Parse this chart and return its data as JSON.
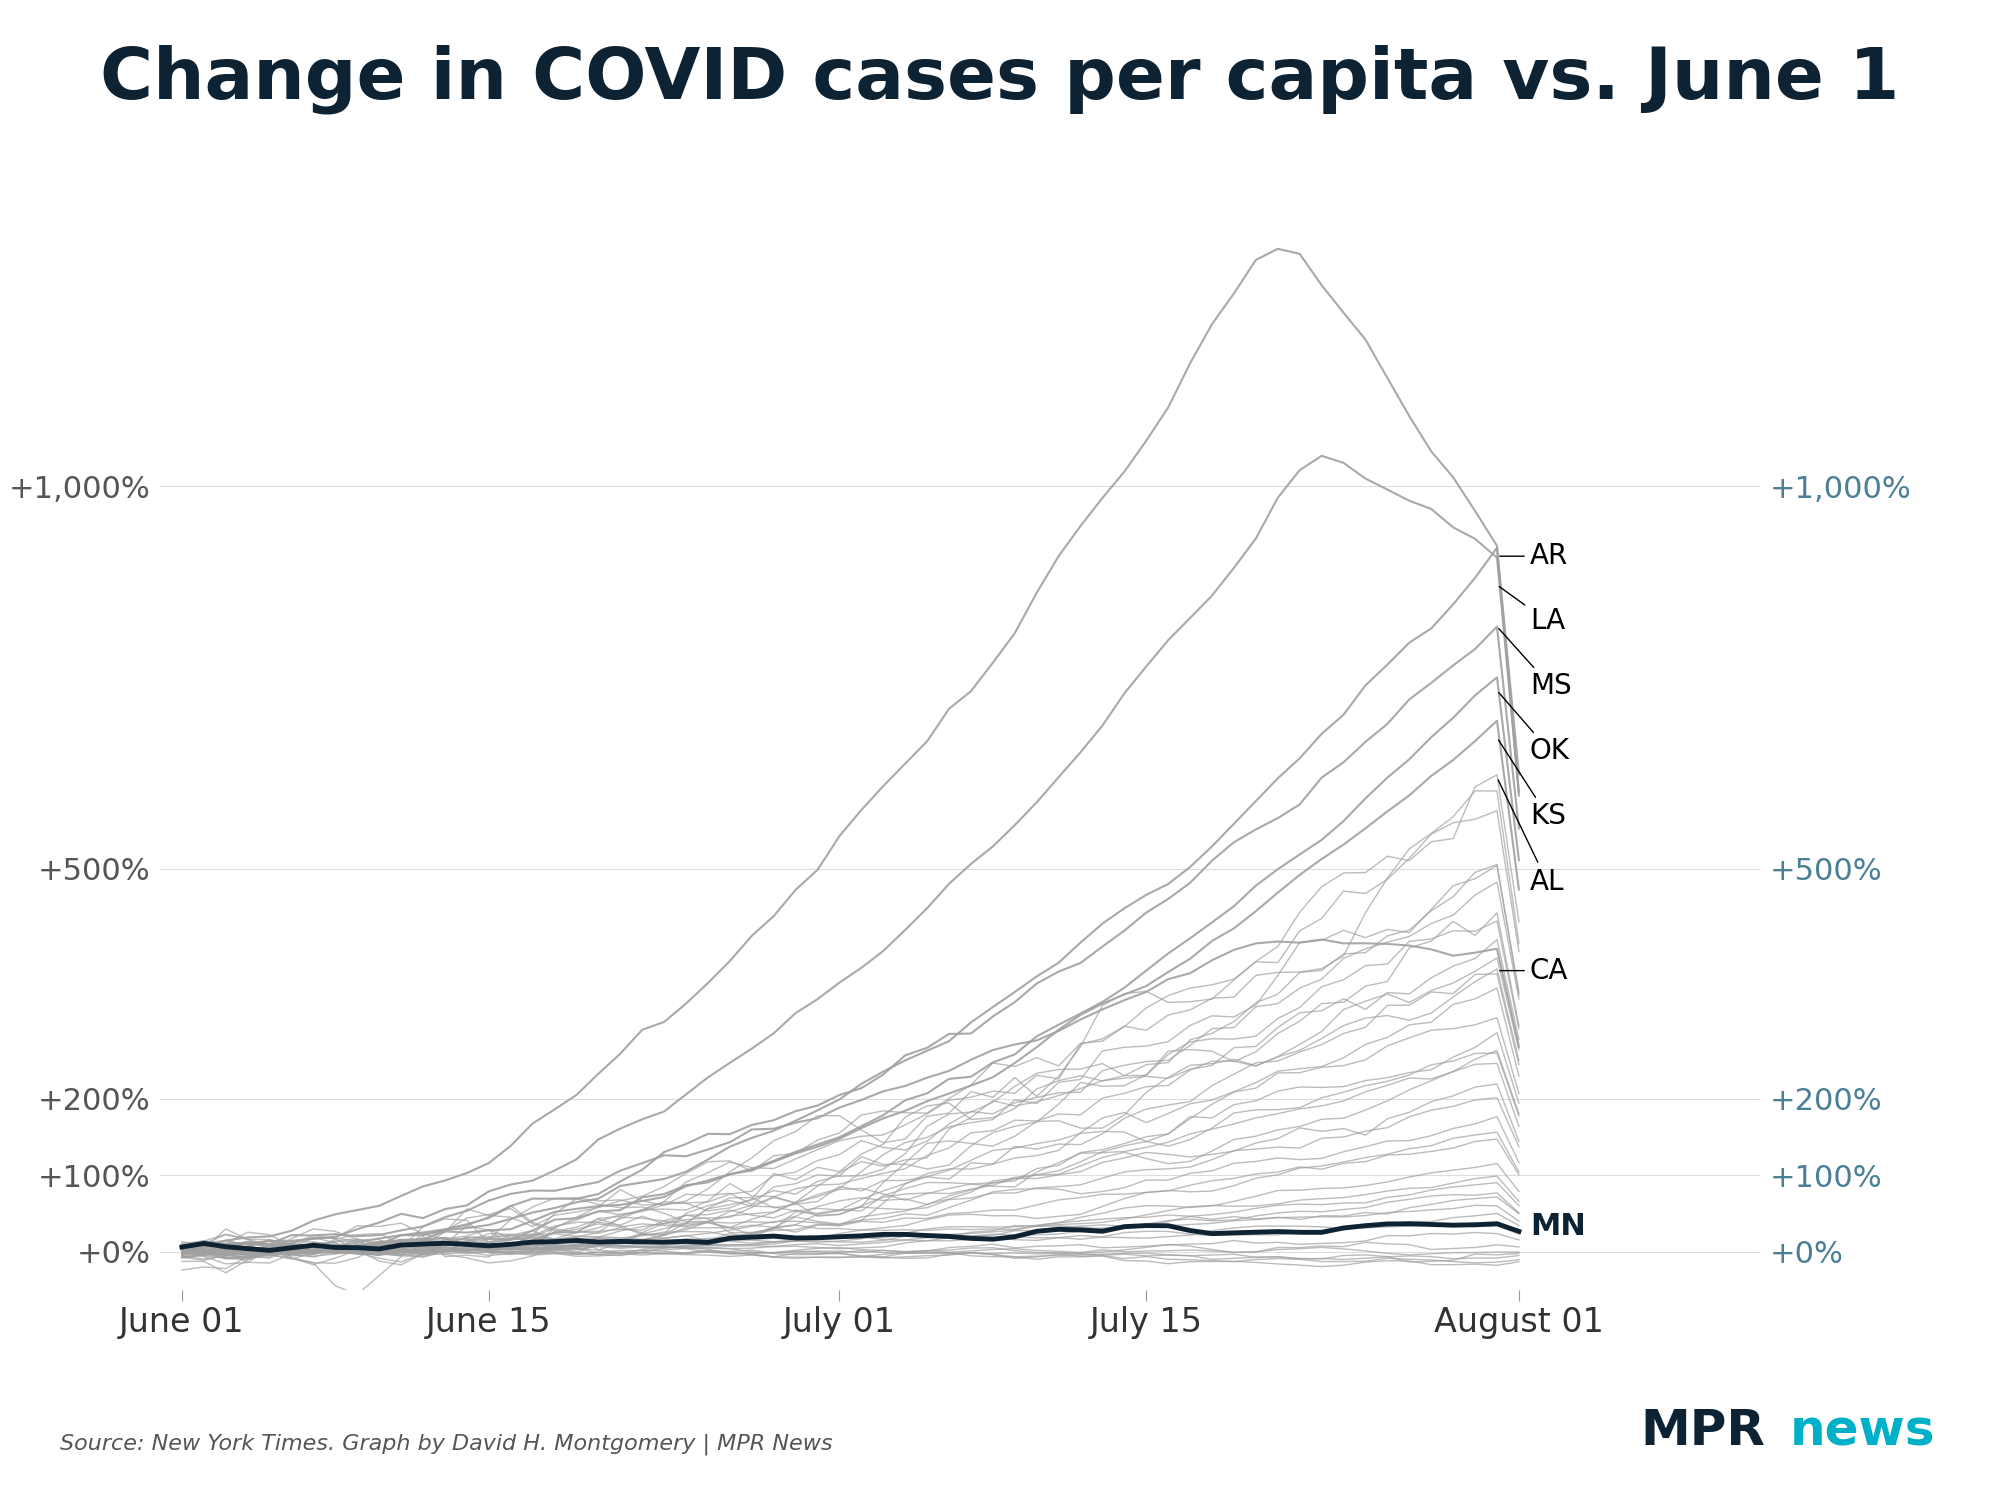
{
  "title": "Change in COVID cases per capita vs. June 1",
  "title_color": "#0d2233",
  "title_fontsize": 52,
  "source_text": "Source: New York Times. Graph by David H. Montgomery | MPR News",
  "mpr_text_mpr": "MPR",
  "mpr_text_news": "news",
  "mpr_color": "#0d2233",
  "mpr_news_color": "#00b0c8",
  "background_color": "#ffffff",
  "line_color_default": "#a0a0a0",
  "mn_color": "#0d2233",
  "label_color_right": "#4a7f96",
  "ytick_labels": [
    "+0%",
    "+100%",
    "+200%",
    "+500%",
    "+1,000%"
  ],
  "ytick_values": [
    0,
    1.0,
    2.0,
    5.0,
    10.0
  ],
  "ylim": [
    -0.5,
    14.0
  ],
  "xtick_labels": [
    "June 01",
    "June 15",
    "July 01",
    "July 15",
    "August 01"
  ],
  "xtick_days": [
    0,
    14,
    30,
    44,
    61
  ],
  "labeled_states": [
    "AR",
    "LA",
    "MS",
    "OK",
    "KS",
    "AL",
    "CA"
  ],
  "mn_state": "MN",
  "total_days": 62
}
